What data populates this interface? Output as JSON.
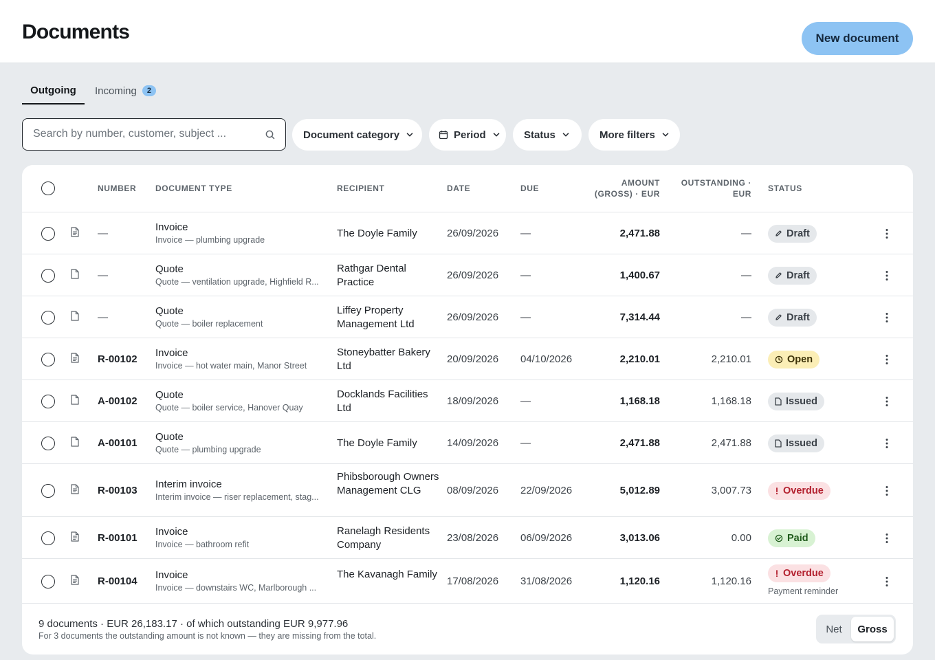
{
  "header": {
    "title": "Documents",
    "new_button": "New document"
  },
  "tabs": [
    {
      "label": "Outgoing",
      "active": true
    },
    {
      "label": "Incoming",
      "badge": "2"
    }
  ],
  "search": {
    "placeholder": "Search by number, customer, subject ...",
    "value": ""
  },
  "filters": {
    "category": "Document category",
    "period": "Period",
    "status": "Status",
    "more": "More filters"
  },
  "table": {
    "columns": {
      "number": "NUMBER",
      "document_type": "DOCUMENT TYPE",
      "recipient": "RECIPIENT",
      "date": "DATE",
      "due": "DUE",
      "amount_1": "AMOUNT",
      "amount_2": "(GROSS) · EUR",
      "outstanding_1": "OUTSTANDING ·",
      "outstanding_2": "EUR",
      "status": "STATUS"
    },
    "rows": [
      {
        "icon": "invoice",
        "number": "—",
        "type": "Invoice",
        "subject": "Invoice — plumbing upgrade",
        "recipient": "The Doyle Family",
        "date": "26/09/2026",
        "due": "—",
        "amount": "2,471.88",
        "outstanding": "—",
        "status": "Draft",
        "status_kind": "draft"
      },
      {
        "icon": "quote",
        "number": "—",
        "type": "Quote",
        "subject": "Quote — ventilation upgrade, Highfield R...",
        "recipient": "Rathgar Dental Practice",
        "date": "26/09/2026",
        "due": "—",
        "amount": "1,400.67",
        "outstanding": "—",
        "status": "Draft",
        "status_kind": "draft"
      },
      {
        "icon": "quote",
        "number": "—",
        "type": "Quote",
        "subject": "Quote — boiler replacement",
        "recipient": "Liffey Property Management Ltd",
        "date": "26/09/2026",
        "due": "—",
        "amount": "7,314.44",
        "outstanding": "—",
        "status": "Draft",
        "status_kind": "draft"
      },
      {
        "icon": "invoice",
        "number": "R-00102",
        "type": "Invoice",
        "subject": "Invoice — hot water main, Manor Street",
        "recipient": "Stoneybatter Bakery Ltd",
        "date": "20/09/2026",
        "due": "04/10/2026",
        "amount": "2,210.01",
        "outstanding": "2,210.01",
        "status": "Open",
        "status_kind": "open"
      },
      {
        "icon": "quote",
        "number": "A-00102",
        "type": "Quote",
        "subject": "Quote — boiler service, Hanover Quay",
        "recipient": "Docklands Facilities Ltd",
        "date": "18/09/2026",
        "due": "—",
        "amount": "1,168.18",
        "outstanding": "1,168.18",
        "status": "Issued",
        "status_kind": "issued"
      },
      {
        "icon": "quote",
        "number": "A-00101",
        "type": "Quote",
        "subject": "Quote — plumbing upgrade",
        "recipient": "The Doyle Family",
        "date": "14/09/2026",
        "due": "—",
        "amount": "2,471.88",
        "outstanding": "2,471.88",
        "status": "Issued",
        "status_kind": "issued"
      },
      {
        "icon": "invoice",
        "number": "R-00103",
        "type": "Interim invoice",
        "subject": "Interim invoice — riser replacement, stag...",
        "recipient": "Phibsborough Owners Management CLG",
        "date": "08/09/2026",
        "due": "22/09/2026",
        "amount": "5,012.89",
        "outstanding": "3,007.73",
        "status": "Overdue",
        "status_kind": "overdue"
      },
      {
        "icon": "invoice",
        "number": "R-00101",
        "type": "Invoice",
        "subject": "Invoice — bathroom refit",
        "recipient": "Ranelagh Residents Company",
        "date": "23/08/2026",
        "due": "06/09/2026",
        "amount": "3,013.06",
        "outstanding": "0.00",
        "status": "Paid",
        "status_kind": "paid"
      },
      {
        "icon": "invoice",
        "number": "R-00104",
        "type": "Invoice",
        "subject": "Invoice — downstairs WC, Marlborough ...",
        "recipient": "The Kavanagh Family",
        "date": "17/08/2026",
        "due": "31/08/2026",
        "amount": "1,120.16",
        "outstanding": "1,120.16",
        "status": "Overdue",
        "status_kind": "overdue",
        "status_note": "Payment reminder"
      }
    ]
  },
  "footer": {
    "summary": "9 documents · EUR 26,183.17 · of which outstanding EUR 9,977.96",
    "note": "For 3 documents the outstanding amount is not known — they are missing from the total.",
    "toggle": {
      "net": "Net",
      "gross": "Gross",
      "selected": "Gross"
    }
  },
  "colors": {
    "accent": "#8dc3f3",
    "page_bg": "#e8ebee",
    "draft": "#e5e8eb",
    "open": "#fbeeb6",
    "overdue": "#fbe1e3",
    "overdue_text": "#b3202e",
    "paid": "#d8f2d3"
  }
}
